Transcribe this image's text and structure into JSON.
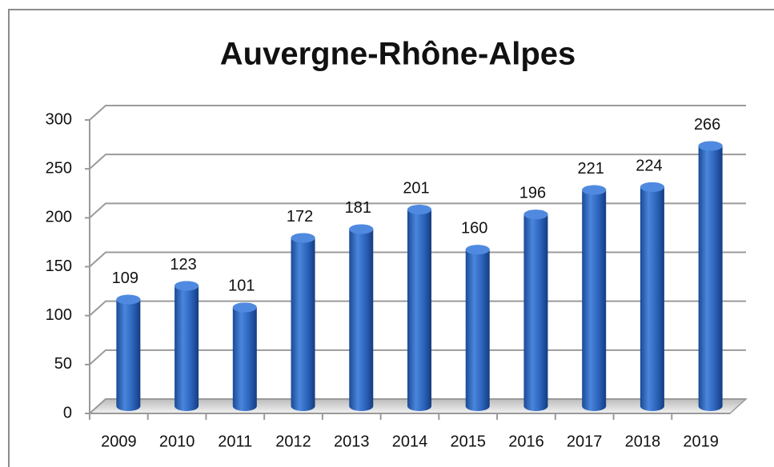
{
  "chart_data": {
    "type": "bar",
    "title": "Auvergne-Rhône-Alpes",
    "categories": [
      "2009",
      "2010",
      "2011",
      "2012",
      "2013",
      "2014",
      "2015",
      "2016",
      "2017",
      "2018",
      "2019"
    ],
    "values": [
      109,
      123,
      101,
      172,
      181,
      201,
      160,
      196,
      221,
      224,
      266
    ],
    "color": "#2a62b8",
    "ylim": [
      0,
      300
    ],
    "yticks": [
      0,
      50,
      100,
      150,
      200,
      250,
      300
    ],
    "grid": true
  }
}
